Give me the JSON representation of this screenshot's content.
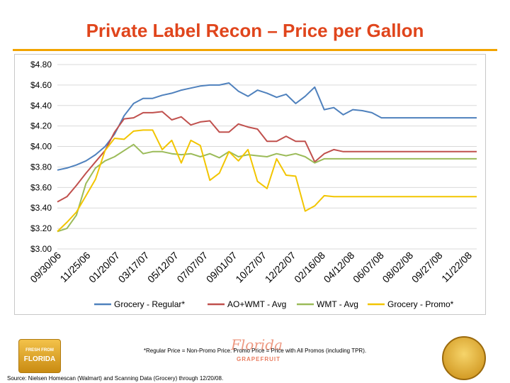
{
  "title": "Private Label Recon – Price per Gallon",
  "footnote": "*Regular Price = Non-Promo Price. Promo Price = Price with All Promos (including TPR).",
  "source": "Source: Nielsen Homescan (Walmart) and Scanning Data (Grocery) through 12/20/08.",
  "logos": {
    "left_line1": "FRESH FROM",
    "left_line2": "FLORIDA",
    "center_script": "Florida",
    "center_word": "GRAPEFRUIT"
  },
  "colors": {
    "title": "#e0451c",
    "rule": "#f2a400",
    "grocery_regular": "#4f81bd",
    "ao_wmt": "#c0504d",
    "wmt": "#9bbb59",
    "grocery_promo": "#f2c500"
  },
  "chart_data": {
    "type": "line",
    "title": "",
    "xlabel": "",
    "ylabel": "",
    "ylim": [
      3.0,
      4.8
    ],
    "yticks": [
      3.0,
      3.2,
      3.4,
      3.6,
      3.8,
      4.0,
      4.2,
      4.4,
      4.6,
      4.8
    ],
    "ytick_labels": [
      "$3.00",
      "$3.20",
      "$3.40",
      "$3.60",
      "$3.80",
      "$4.00",
      "$4.20",
      "$4.40",
      "$4.60",
      "$4.80"
    ],
    "grid": true,
    "legend": "bottom",
    "xtick_labels": [
      "09/30/06",
      "11/25/06",
      "01/20/07",
      "03/17/07",
      "05/12/07",
      "07/07/07",
      "09/01/07",
      "10/27/07",
      "12/22/07",
      "02/16/08",
      "04/12/08",
      "06/07/08",
      "08/02/08",
      "09/27/08",
      "11/22/08"
    ],
    "n_points": 45,
    "series": [
      {
        "name": "Grocery - Regular*",
        "color": "#4f81bd",
        "values": [
          3.77,
          3.79,
          3.82,
          3.86,
          3.92,
          4.0,
          4.12,
          4.3,
          4.42,
          4.47,
          4.47,
          4.5,
          4.52,
          4.55,
          4.57,
          4.59,
          4.6,
          4.6,
          4.62,
          4.54,
          4.49,
          4.55,
          4.52,
          4.48,
          4.51,
          4.42,
          4.49,
          4.58,
          4.36,
          4.38,
          4.31,
          4.36,
          4.35,
          4.33,
          4.28,
          4.28,
          4.28,
          4.28,
          4.28,
          4.28,
          4.28,
          4.28,
          4.28,
          4.28,
          4.28
        ]
      },
      {
        "name": "AO+WMT - Avg",
        "color": "#c0504d",
        "values": [
          3.46,
          3.51,
          3.62,
          3.74,
          3.85,
          3.96,
          4.14,
          4.27,
          4.28,
          4.33,
          4.33,
          4.34,
          4.26,
          4.29,
          4.21,
          4.24,
          4.25,
          4.14,
          4.14,
          4.22,
          4.19,
          4.17,
          4.05,
          4.05,
          4.1,
          4.05,
          4.05,
          3.85,
          3.93,
          3.97,
          3.95,
          3.95,
          3.95,
          3.95,
          3.95,
          3.95,
          3.95,
          3.95,
          3.95,
          3.95,
          3.95,
          3.95,
          3.95,
          3.95,
          3.95
        ]
      },
      {
        "name": "WMT - Avg",
        "color": "#9bbb59",
        "values": [
          3.17,
          3.2,
          3.33,
          3.64,
          3.79,
          3.86,
          3.9,
          3.96,
          4.02,
          3.93,
          3.95,
          3.95,
          3.93,
          3.92,
          3.93,
          3.9,
          3.93,
          3.89,
          3.95,
          3.9,
          3.92,
          3.91,
          3.9,
          3.93,
          3.91,
          3.93,
          3.9,
          3.84,
          3.88,
          3.88,
          3.88,
          3.88,
          3.88,
          3.88,
          3.88,
          3.88,
          3.88,
          3.88,
          3.88,
          3.88,
          3.88,
          3.88,
          3.88,
          3.88,
          3.88
        ]
      },
      {
        "name": "Grocery - Promo*",
        "color": "#f2c500",
        "values": [
          3.17,
          3.26,
          3.36,
          3.52,
          3.68,
          3.96,
          4.08,
          4.07,
          4.15,
          4.16,
          4.16,
          3.97,
          4.06,
          3.84,
          4.06,
          4.01,
          3.67,
          3.74,
          3.95,
          3.86,
          3.97,
          3.66,
          3.59,
          3.88,
          3.72,
          3.71,
          3.37,
          3.42,
          3.52,
          3.51,
          3.51,
          3.51,
          3.51,
          3.51,
          3.51,
          3.51,
          3.51,
          3.51,
          3.51,
          3.51,
          3.51,
          3.51,
          3.51,
          3.51,
          3.51
        ]
      }
    ]
  }
}
